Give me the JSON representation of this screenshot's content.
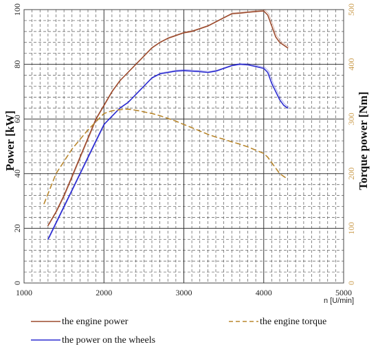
{
  "chart_data": {
    "type": "line",
    "xlabel": "n [U/min]",
    "ylabel_left": "Power [kW]",
    "ylabel_right": "Torque power [Nm]",
    "xlim": [
      1000,
      5000
    ],
    "ylim_left": [
      0,
      100
    ],
    "ylim_right": [
      0,
      500
    ],
    "x_ticks": [
      1000,
      2000,
      3000,
      4000,
      5000
    ],
    "y_ticks_left": [
      0,
      20,
      40,
      60,
      80,
      100
    ],
    "y_ticks_right": [
      0,
      100,
      200,
      300,
      400,
      500
    ],
    "grid": true,
    "legend_position": "bottom",
    "series": [
      {
        "name": "the engine power",
        "axis": "left",
        "color": "#9c4a2c",
        "style": "solid",
        "x": [
          1300,
          1400,
          1500,
          1600,
          1700,
          1800,
          1900,
          2000,
          2100,
          2200,
          2300,
          2400,
          2500,
          2600,
          2700,
          2800,
          2900,
          3000,
          3100,
          3200,
          3300,
          3400,
          3500,
          3600,
          3700,
          3800,
          3900,
          4000,
          4050,
          4100,
          4150,
          4200,
          4250,
          4300
        ],
        "y": [
          21,
          26,
          32,
          39,
          46,
          53,
          60,
          65,
          70,
          74,
          77,
          80,
          83,
          86,
          88,
          89.5,
          90.5,
          91.5,
          92,
          93,
          94,
          95.5,
          97,
          98.5,
          98.7,
          99,
          99.3,
          99.5,
          98,
          94,
          90,
          88,
          87,
          86
        ]
      },
      {
        "name": "the power on the wheels",
        "axis": "left",
        "color": "#2a2ad0",
        "style": "solid",
        "x": [
          1300,
          1400,
          1500,
          1600,
          1700,
          1800,
          1900,
          2000,
          2100,
          2200,
          2300,
          2400,
          2500,
          2600,
          2700,
          2800,
          2900,
          3000,
          3100,
          3200,
          3300,
          3400,
          3500,
          3600,
          3700,
          3800,
          3900,
          4000,
          4050,
          4100,
          4150,
          4200,
          4250,
          4300
        ],
        "y": [
          16,
          22,
          28,
          34,
          40,
          46,
          52,
          58,
          61,
          64,
          66,
          69,
          72,
          75,
          76.5,
          77,
          77.5,
          77.7,
          77.5,
          77.3,
          77,
          77.5,
          78.5,
          79.5,
          80,
          79.8,
          79.2,
          78.5,
          77,
          73,
          70,
          67,
          65,
          64
        ]
      },
      {
        "name": "the engine torque",
        "axis": "right",
        "color": "#b8862c",
        "style": "dashed",
        "x": [
          1250,
          1400,
          1600,
          1800,
          2000,
          2100,
          2200,
          2300,
          2400,
          2500,
          2600,
          2700,
          2800,
          2900,
          3000,
          3100,
          3200,
          3300,
          3400,
          3500,
          3600,
          3700,
          3800,
          3900,
          4000,
          4050,
          4100,
          4150,
          4200,
          4250,
          4300
        ],
        "y": [
          145,
          200,
          245,
          280,
          310,
          315,
          317,
          318,
          316,
          313,
          310,
          306,
          301,
          296,
          290,
          284,
          278,
          272,
          267,
          263,
          258,
          254,
          249,
          243,
          237,
          230,
          220,
          210,
          200,
          195,
          190
        ]
      }
    ]
  }
}
